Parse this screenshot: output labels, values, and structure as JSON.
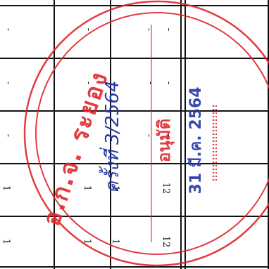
{
  "table": {
    "rows": [
      [
        "-",
        "-",
        "-",
        "-"
      ],
      [
        "-",
        "-",
        "-",
        "-"
      ],
      [
        "-",
        "-",
        "-",
        "-"
      ],
      [
        "1",
        "1",
        "1",
        "12"
      ],
      [
        "1",
        "1",
        "1",
        "12"
      ]
    ]
  },
  "stamp": {
    "org_text": "อ.ก.จ. ระยอง",
    "meeting_text": "ครั้งที่ 3/2564",
    "approved_text": "อนุมัติ",
    "date_text": "31 มี.ค. 2564",
    "colors": {
      "stamp_red": "#e0282c",
      "pen_blue": "#2236a8"
    }
  }
}
